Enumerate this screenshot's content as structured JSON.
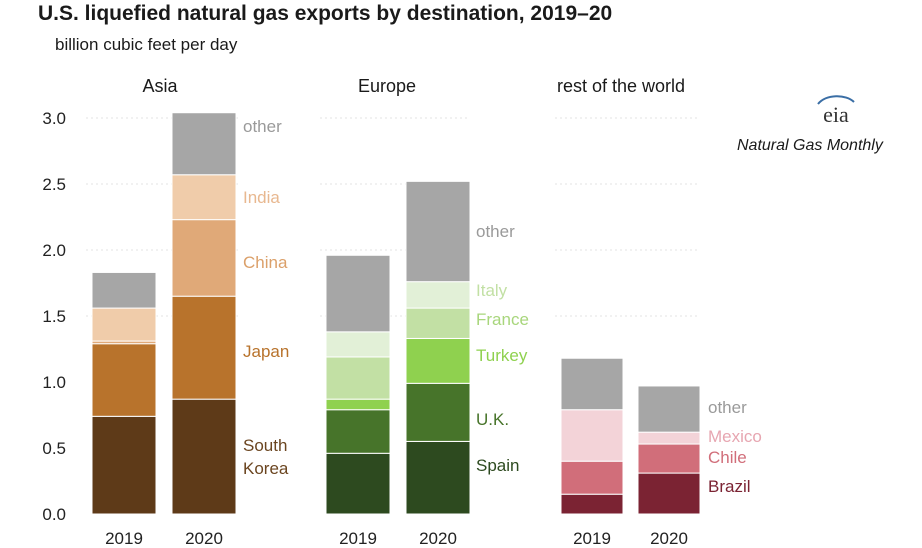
{
  "title": "U.S. liquefied natural gas exports by destination, 2019–20",
  "subtitle": "billion cubic feet per day",
  "source": "Natural Gas Monthly",
  "logo_text": "eia",
  "chart_data": {
    "type": "bar",
    "stacked": true,
    "ylim": [
      0,
      3.0
    ],
    "yticks": [
      "0.0",
      "0.5",
      "1.0",
      "1.5",
      "2.0",
      "2.5",
      "3.0"
    ],
    "grid": false,
    "panels": [
      {
        "name": "Asia",
        "categories": [
          "2019",
          "2020"
        ],
        "series": [
          {
            "name": "South Korea",
            "label_lines": [
              "South",
              "Korea"
            ],
            "color": "#5e3a18",
            "values": [
              0.74,
              0.87
            ]
          },
          {
            "name": "Japan",
            "color": "#b8732c",
            "values": [
              0.55,
              0.78
            ]
          },
          {
            "name": "China",
            "color": "#e0a978",
            "values": [
              0.02,
              0.58
            ]
          },
          {
            "name": "India",
            "color": "#f0ccaa",
            "values": [
              0.25,
              0.34
            ]
          },
          {
            "name": "other",
            "color": "#a6a6a6",
            "values": [
              0.27,
              0.47
            ]
          }
        ]
      },
      {
        "name": "Europe",
        "categories": [
          "2019",
          "2020"
        ],
        "series": [
          {
            "name": "Spain",
            "color": "#2d4a1f",
            "values": [
              0.46,
              0.55
            ]
          },
          {
            "name": "U.K.",
            "color": "#47742a",
            "values": [
              0.33,
              0.44
            ]
          },
          {
            "name": "Turkey",
            "color": "#8fd14f",
            "values": [
              0.08,
              0.34
            ]
          },
          {
            "name": "France",
            "color": "#c2e0a4",
            "values": [
              0.32,
              0.23
            ]
          },
          {
            "name": "Italy",
            "color": "#e2f0d7",
            "values": [
              0.19,
              0.2
            ]
          },
          {
            "name": "other",
            "color": "#a6a6a6",
            "values": [
              0.58,
              0.76
            ]
          }
        ]
      },
      {
        "name": "rest of the world",
        "categories": [
          "2019",
          "2020"
        ],
        "series": [
          {
            "name": "Brazil",
            "color": "#7b2333",
            "values": [
              0.15,
              0.31
            ]
          },
          {
            "name": "Chile",
            "color": "#d16e7a",
            "values": [
              0.25,
              0.22
            ]
          },
          {
            "name": "Mexico",
            "color": "#f3d3d8",
            "values": [
              0.39,
              0.09
            ]
          },
          {
            "name": "other",
            "color": "#a6a6a6",
            "values": [
              0.39,
              0.35
            ]
          }
        ]
      }
    ],
    "label_colors": {
      "other": "#9a9a9a",
      "India": "#e8b890",
      "China": "#dba06a",
      "Japan": "#b8732c",
      "South Korea": "#6b4520",
      "Italy": "#c2e0a4",
      "France": "#a8d67c",
      "Turkey": "#8fd14f",
      "U.K.": "#47742a",
      "Spain": "#2d4a1f",
      "Mexico": "#e7a6b1",
      "Chile": "#d16e7a",
      "Brazil": "#7b2333"
    }
  }
}
